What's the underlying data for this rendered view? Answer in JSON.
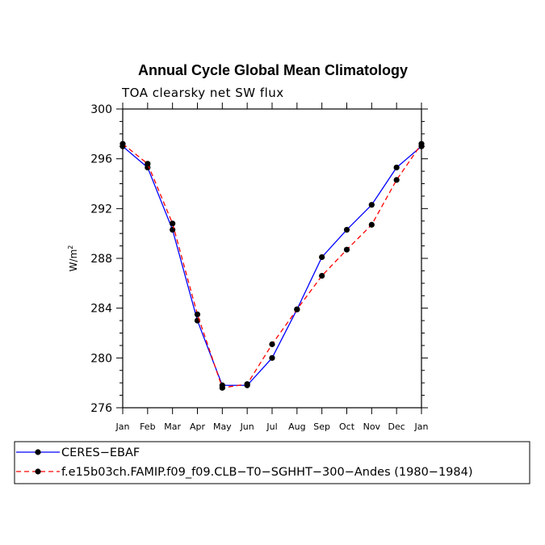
{
  "chart_data": {
    "type": "line",
    "title": "Annual Cycle Global Mean Climatology",
    "subtitle": "TOA clearsky net SW flux",
    "ylabel": "W/m",
    "ylabel_superscript": "2",
    "xlabel": "",
    "categories": [
      "Jan",
      "Feb",
      "Mar",
      "Apr",
      "May",
      "Jun",
      "Jul",
      "Aug",
      "Sep",
      "Oct",
      "Nov",
      "Dec",
      "Jan"
    ],
    "ylim": [
      276,
      300
    ],
    "yticks": [
      276,
      280,
      284,
      288,
      292,
      296,
      300
    ],
    "series": [
      {
        "name": "CERES−EBAF",
        "color": "#0000ff",
        "line_style": "solid",
        "marker": "filled-circle",
        "values": [
          297.0,
          295.3,
          290.3,
          283.0,
          277.8,
          277.8,
          280.0,
          283.9,
          288.1,
          290.3,
          292.3,
          295.3,
          297.0
        ]
      },
      {
        "name": "f.e15b03ch.FAMIP.f09_f09.CLB−T0−SGHHT−300−Andes (1980−1984)",
        "color": "#ff0000",
        "line_style": "dashed",
        "marker": "filled-circle",
        "values": [
          297.2,
          295.6,
          290.8,
          283.5,
          277.6,
          277.9,
          281.1,
          283.9,
          286.6,
          288.7,
          290.7,
          294.3,
          297.2
        ]
      }
    ],
    "grid": false,
    "legend_placement": "bottom"
  }
}
